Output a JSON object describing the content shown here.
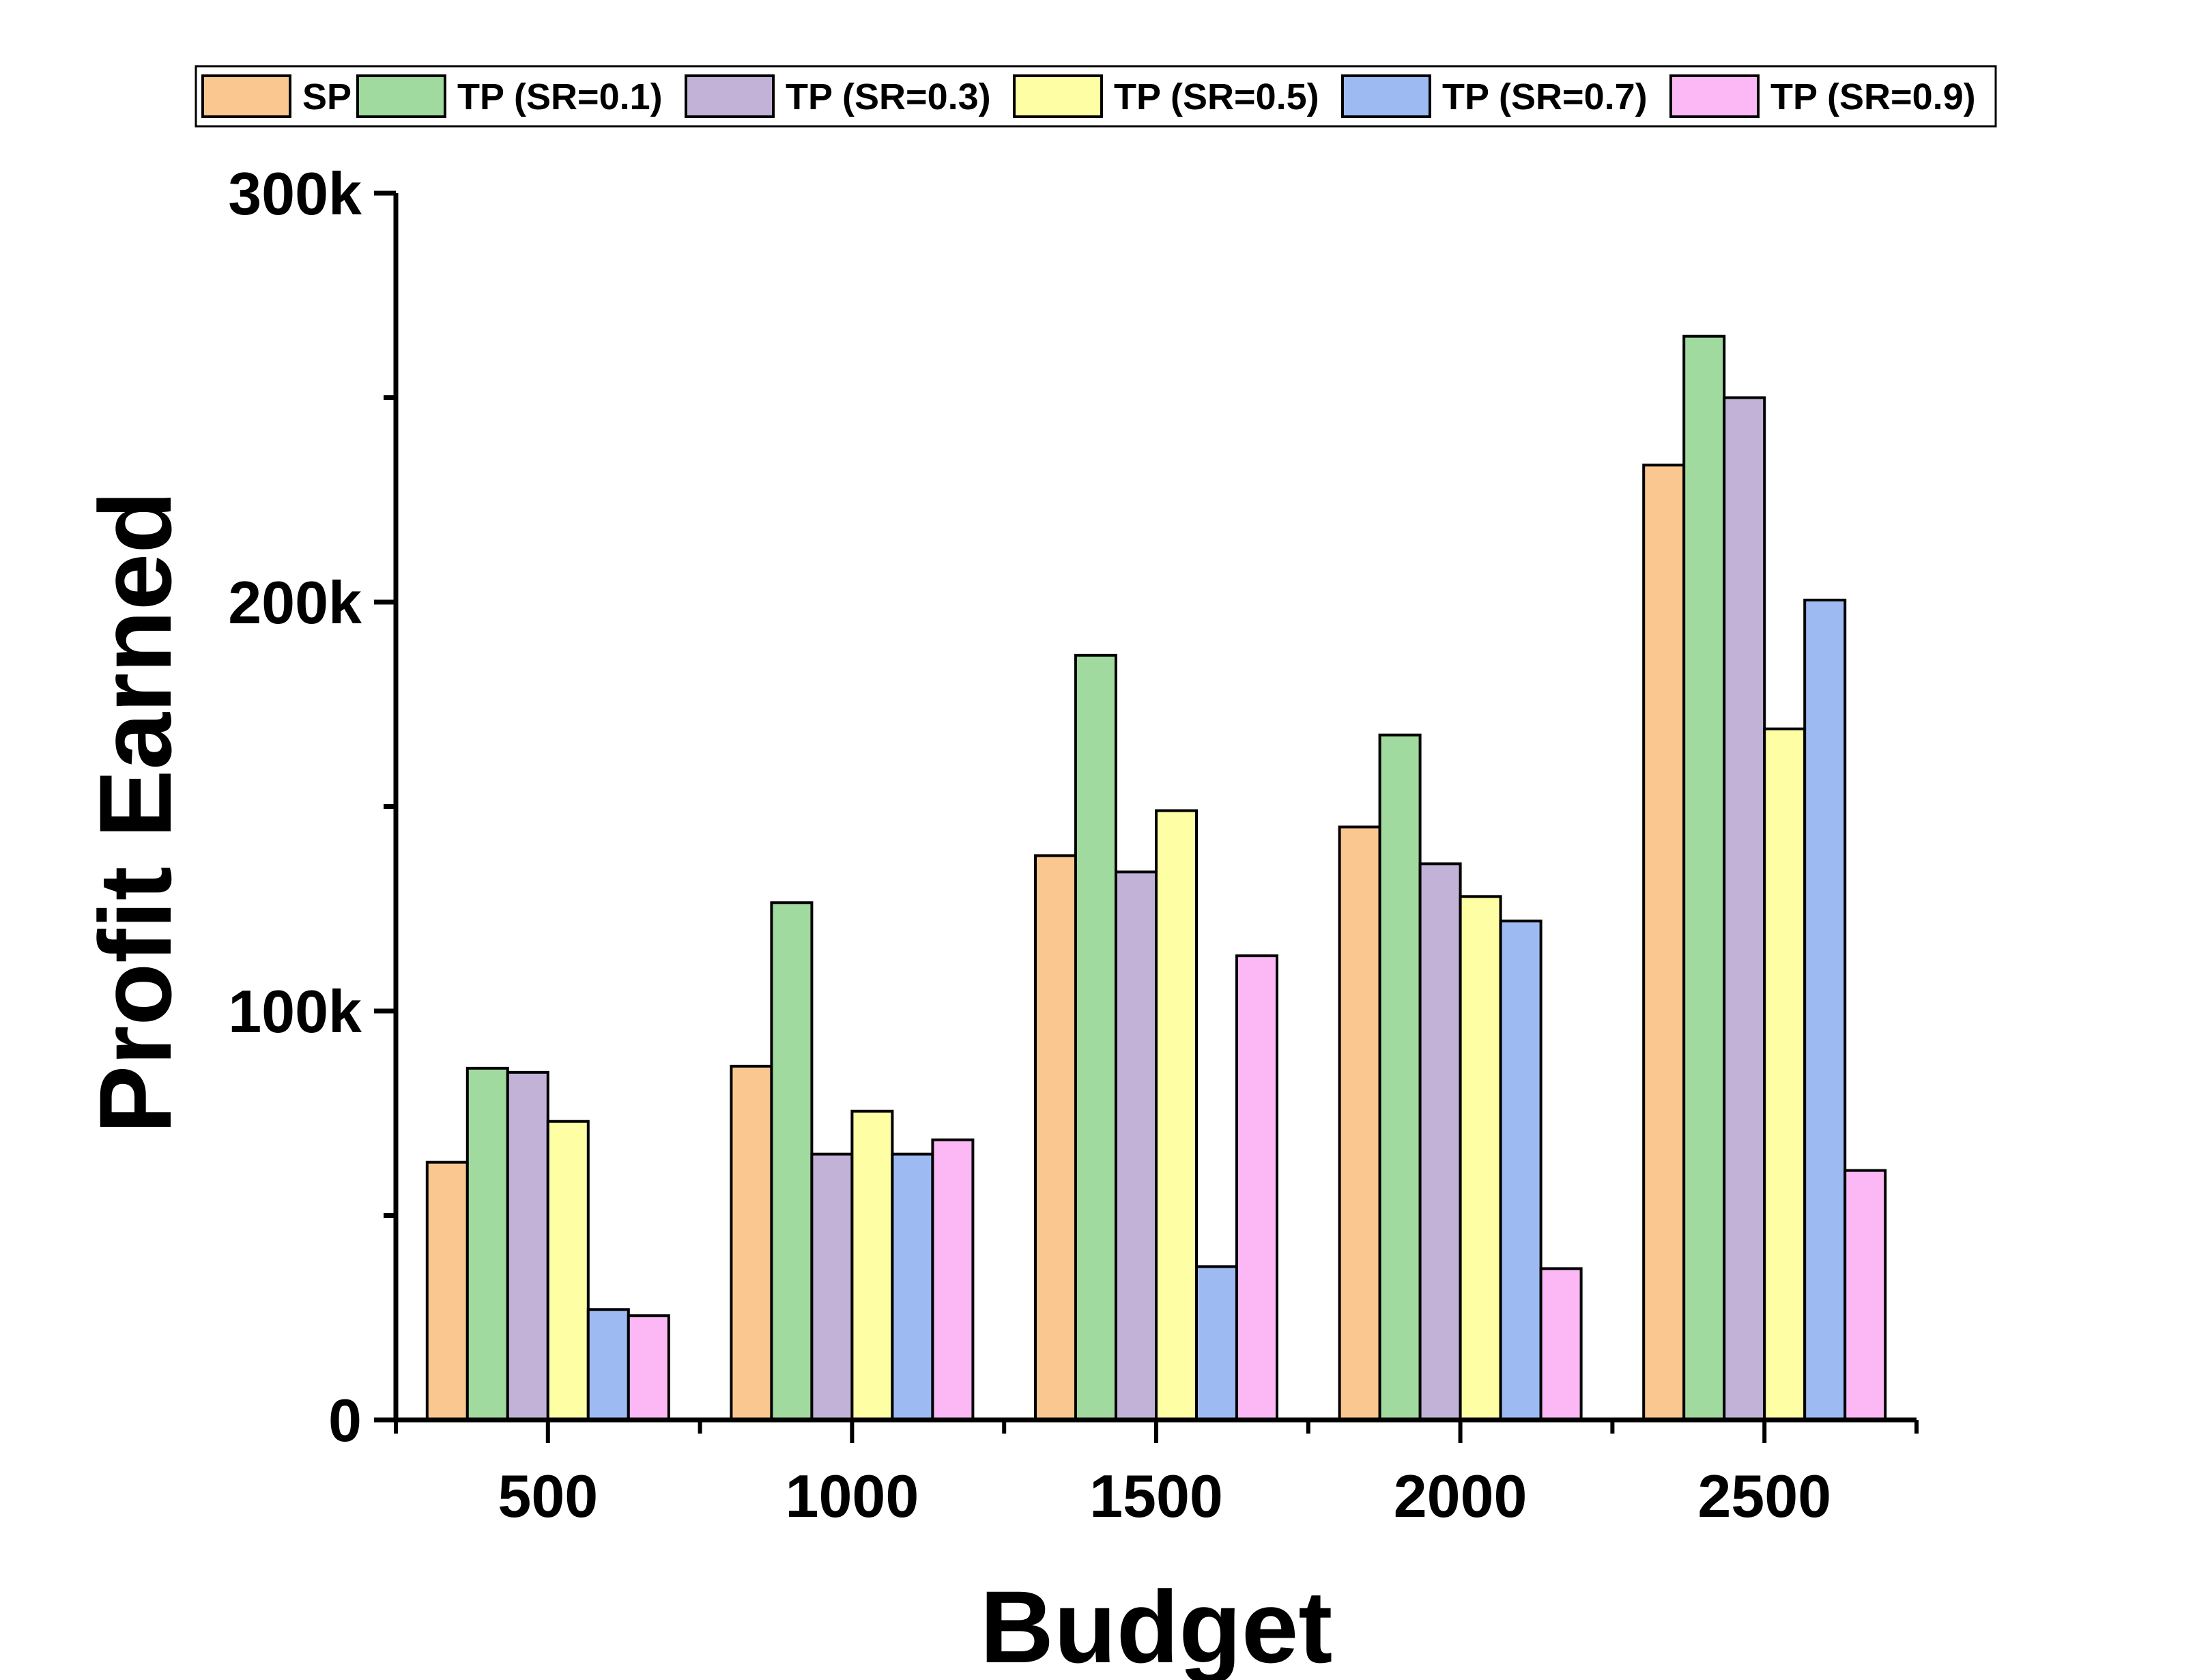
{
  "chart_data": {
    "type": "bar",
    "title": "",
    "xlabel": "Budget",
    "ylabel": "Profit Earned",
    "categories": [
      "500",
      "1000",
      "1500",
      "2000",
      "2500"
    ],
    "ylim": [
      0,
      300000
    ],
    "yticks": [
      {
        "value": 0,
        "label": "0"
      },
      {
        "value": 100000,
        "label": "100k"
      },
      {
        "value": 200000,
        "label": "200k"
      },
      {
        "value": 300000,
        "label": "300k"
      }
    ],
    "grid": false,
    "legend_position": "top",
    "series": [
      {
        "name": "SP",
        "color": "#FAC791",
        "values": [
          63000,
          86500,
          138000,
          145000,
          233500
        ]
      },
      {
        "name": "TP (SR=0.1)",
        "color": "#A0DA9F",
        "values": [
          86000,
          126500,
          187000,
          167500,
          265000
        ]
      },
      {
        "name": "TP (SR=0.3)",
        "color": "#C3B2D8",
        "values": [
          85000,
          65000,
          134000,
          136000,
          250000
        ]
      },
      {
        "name": "TP (SR=0.5)",
        "color": "#FEFEA5",
        "values": [
          73000,
          75500,
          149000,
          128000,
          169000
        ]
      },
      {
        "name": "TP (SR=0.7)",
        "color": "#9DBBF2",
        "values": [
          27000,
          65000,
          37500,
          122000,
          200500
        ]
      },
      {
        "name": "TP (SR=0.9)",
        "color": "#FCB8F5",
        "values": [
          25500,
          68500,
          113500,
          37000,
          61000
        ]
      }
    ]
  }
}
